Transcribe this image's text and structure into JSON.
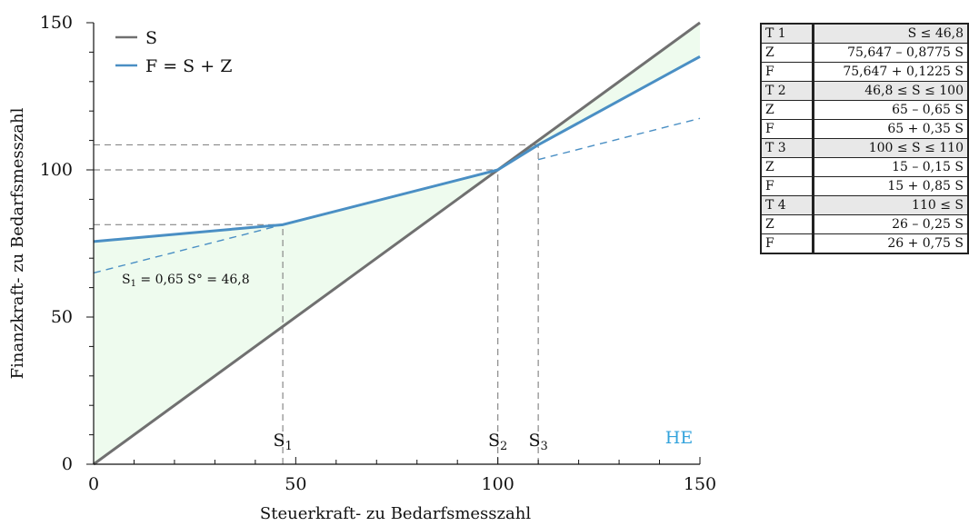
{
  "chart_data": {
    "type": "line",
    "xlabel": "Steuerkraft- zu Bedarfsmesszahl",
    "ylabel": "Finanzkraft- zu Bedarfsmesszahl",
    "xlim": [
      0,
      150
    ],
    "ylim": [
      0,
      150
    ],
    "xticks": [
      0,
      50,
      100,
      150
    ],
    "yticks": [
      0,
      50,
      100,
      150
    ],
    "grid": false,
    "legend_position": "top-left",
    "series": [
      {
        "name": "S",
        "color": "#707070",
        "x": [
          0,
          150
        ],
        "y": [
          0,
          150
        ]
      },
      {
        "name": "F = S + Z",
        "color": "#4a8fc4",
        "x": [
          0,
          46.8,
          100,
          110,
          150
        ],
        "y": [
          75.647,
          81.38,
          100,
          108.5,
          138.5
        ]
      }
    ],
    "extension_lines": [
      {
        "color": "#4a8fc4",
        "style": "dashed",
        "x": [
          0,
          46.8
        ],
        "y": [
          65,
          81.38
        ]
      },
      {
        "color": "#4a8fc4",
        "style": "dashed",
        "x": [
          110,
          150
        ],
        "y": [
          103.5,
          117.5
        ]
      }
    ],
    "reference_lines": {
      "vertical": [
        46.8,
        100,
        110
      ],
      "horizontal": [
        81.38,
        100,
        108.5
      ]
    },
    "fill_color": "#eefbee",
    "markers": [
      {
        "label": "S",
        "sub": "1",
        "x": 46.8
      },
      {
        "label": "S",
        "sub": "2",
        "x": 100
      },
      {
        "label": "S",
        "sub": "3",
        "x": 110
      }
    ],
    "annotation": {
      "prefix": "S",
      "sub": "1",
      "text": " = 0,65 S° = 46,8"
    },
    "region_label": {
      "text": "HE",
      "color": "#33a3dc"
    }
  },
  "formula_table": [
    {
      "tier": "T 1",
      "formula": "S ≤ 46,8",
      "header": true
    },
    {
      "tier": "Z",
      "formula": "75,647 – 0,8775 S",
      "header": false
    },
    {
      "tier": "F",
      "formula": "75,647 + 0,1225 S",
      "header": false
    },
    {
      "tier": "T 2",
      "formula": "46,8 ≤ S ≤ 100",
      "header": true
    },
    {
      "tier": "Z",
      "formula": "65 – 0,65 S",
      "header": false
    },
    {
      "tier": "F",
      "formula": "65 + 0,35 S",
      "header": false
    },
    {
      "tier": "T 3",
      "formula": "100 ≤ S ≤ 110",
      "header": true
    },
    {
      "tier": "Z",
      "formula": "15 – 0,15 S",
      "header": false
    },
    {
      "tier": "F",
      "formula": "15 + 0,85 S",
      "header": false
    },
    {
      "tier": "T 4",
      "formula": "110 ≤ S",
      "header": true
    },
    {
      "tier": "Z",
      "formula": "26 – 0,25 S",
      "header": false
    },
    {
      "tier": "F",
      "formula": "26 + 0,75 S",
      "header": false
    }
  ]
}
